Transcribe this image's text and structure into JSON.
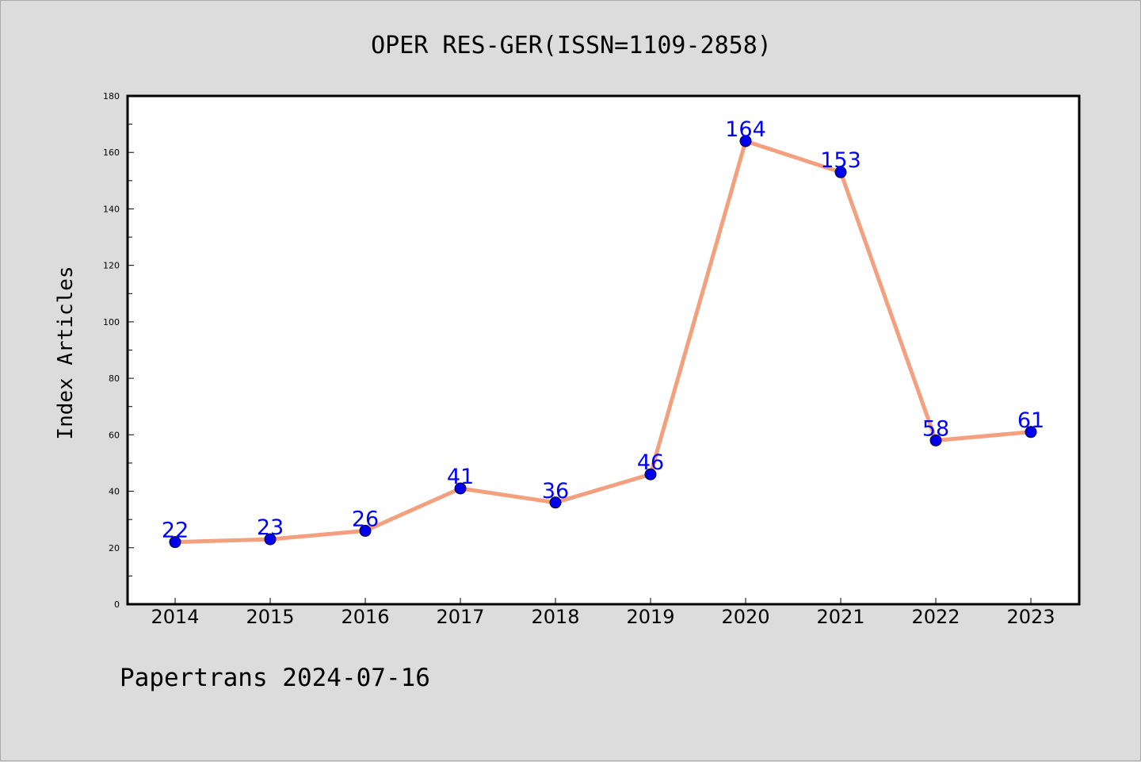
{
  "chart_data": {
    "type": "line",
    "title": "OPER RES-GER(ISSN=1109-2858)",
    "ylabel": "Index Articles",
    "xlabel": "",
    "categories": [
      "2014",
      "2015",
      "2016",
      "2017",
      "2018",
      "2019",
      "2020",
      "2021",
      "2022",
      "2023"
    ],
    "series": [
      {
        "values": [
          22,
          23,
          26,
          41,
          36,
          46,
          164,
          153,
          58,
          61
        ]
      }
    ],
    "data_labels": [
      "22",
      "23",
      "26",
      "41",
      "36",
      "46",
      "164",
      "153",
      "58",
      "61"
    ],
    "ylim": [
      0,
      180
    ],
    "yticks": [
      "0",
      "20",
      "40",
      "60",
      "80",
      "100",
      "120",
      "140",
      "160",
      "180"
    ],
    "grid": false,
    "footer": "Papertrans 2024-07-16",
    "colors": {
      "line": "#f4a07e",
      "marker": "#0000ee",
      "label": "#0000ff",
      "background": "#dcdcdc",
      "plot_background": "#ffffff"
    }
  }
}
